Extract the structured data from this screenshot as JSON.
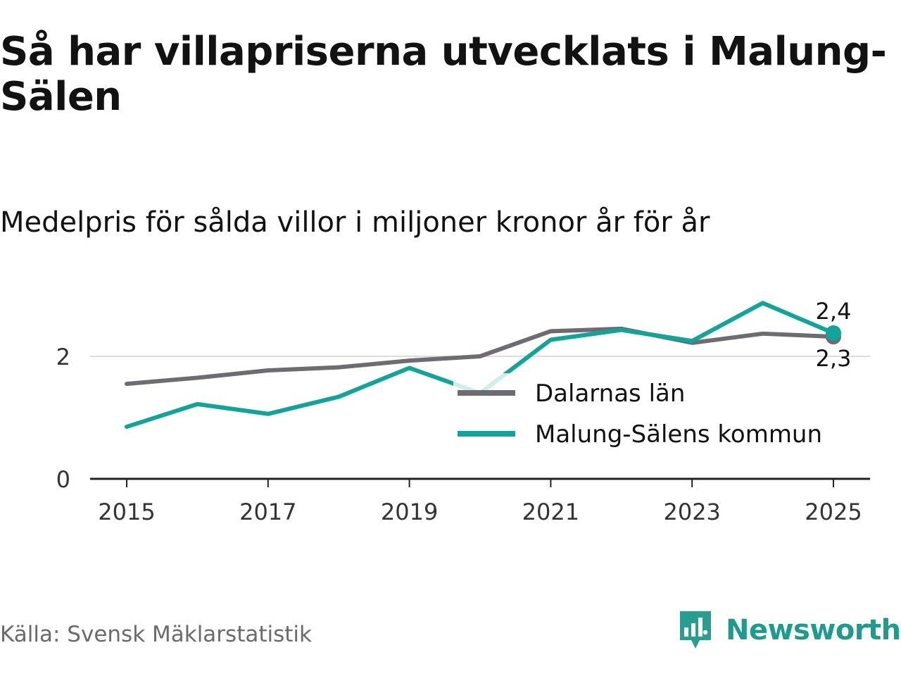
{
  "title": "Så har villapriserna utvecklats i Malung-Sälen",
  "subtitle": "Medelpris för sålda villor i miljoner kronor år för år",
  "source": "Källa: Svensk Mäklarstatistik",
  "brand": "Newsworthy",
  "chart_data": {
    "type": "line",
    "x": [
      2015,
      2016,
      2017,
      2018,
      2019,
      2020,
      2021,
      2022,
      2023,
      2024,
      2025
    ],
    "series": [
      {
        "name": "Dalarnas län",
        "color": "#6e6c72",
        "values": [
          1.55,
          1.65,
          1.77,
          1.82,
          1.93,
          2.0,
          2.41,
          2.45,
          2.22,
          2.37,
          2.32
        ],
        "end_label": "2,3"
      },
      {
        "name": "Malung-Sälens kommun",
        "color": "#12a39a",
        "values": [
          0.85,
          1.22,
          1.06,
          1.34,
          1.81,
          1.4,
          2.27,
          2.43,
          2.25,
          2.87,
          2.38
        ],
        "end_label": "2,4"
      }
    ],
    "y_ticks": [
      {
        "value": 0,
        "label": "0"
      },
      {
        "value": 2,
        "label": "2"
      }
    ],
    "x_ticks": [
      {
        "value": 2015,
        "label": "2015"
      },
      {
        "value": 2017,
        "label": "2017"
      },
      {
        "value": 2019,
        "label": "2019"
      },
      {
        "value": 2021,
        "label": "2021"
      },
      {
        "value": 2023,
        "label": "2023"
      },
      {
        "value": 2025,
        "label": "2025"
      }
    ],
    "ylim": [
      0,
      3
    ],
    "xlim": [
      2015,
      2025
    ],
    "gridlines": true,
    "legend_position": "inside-lower-right"
  }
}
